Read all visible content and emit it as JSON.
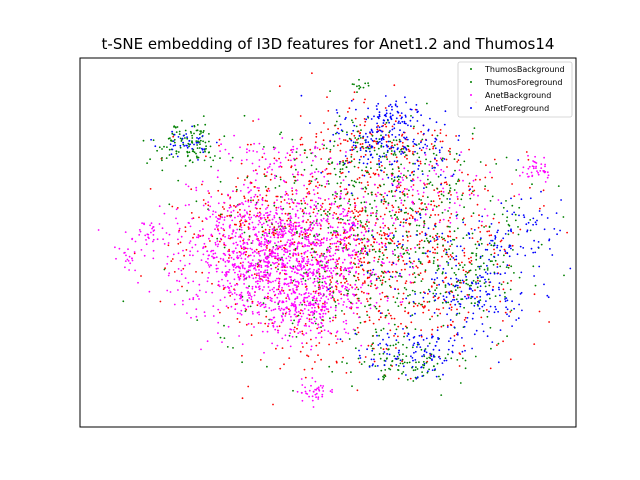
{
  "chart_data": {
    "type": "scatter",
    "title": "t-SNE embedding of I3D features for Anet1.2 and Thumos14",
    "xlabel": "",
    "ylabel": "",
    "xlim": [
      -100,
      100
    ],
    "ylim": [
      -100,
      100
    ],
    "grid": false,
    "axis_ticks": false,
    "legend_position": "top-right",
    "series": [
      {
        "name": "ThumosBackground",
        "color": "#ff0000",
        "legend_color": "#008000",
        "clusters": [
          {
            "cx": 15,
            "cy": -5,
            "sx": 32,
            "sy": 32,
            "n": 900
          },
          {
            "cx": -30,
            "cy": 10,
            "sx": 15,
            "sy": 15,
            "n": 150
          },
          {
            "cx": 20,
            "cy": 55,
            "sx": 14,
            "sy": 8,
            "n": 120
          },
          {
            "cx": 40,
            "cy": 20,
            "sx": 18,
            "sy": 15,
            "n": 100
          }
        ]
      },
      {
        "name": "ThumosForeground",
        "color": "#008000",
        "legend_color": "#008000",
        "clusters": [
          {
            "cx": 20,
            "cy": 0,
            "sx": 32,
            "sy": 32,
            "n": 700
          },
          {
            "cx": -57,
            "cy": 53,
            "sx": 7,
            "sy": 6,
            "n": 120
          },
          {
            "cx": 32,
            "cy": -65,
            "sx": 10,
            "sy": 5,
            "n": 90
          },
          {
            "cx": 60,
            "cy": -20,
            "sx": 10,
            "sy": 10,
            "n": 80
          },
          {
            "cx": 23,
            "cy": 48,
            "sx": 14,
            "sy": 8,
            "n": 100
          },
          {
            "cx": 107,
            "cy": 20,
            "sx": 2,
            "sy": 2,
            "n": 18
          },
          {
            "cx": 12,
            "cy": 85,
            "sx": 2,
            "sy": 2,
            "n": 12
          }
        ]
      },
      {
        "name": "AnetBackground",
        "color": "#ff00ff",
        "legend_color": "#ff00ff",
        "clusters": [
          {
            "cx": -18,
            "cy": -5,
            "sx": 20,
            "sy": 18,
            "n": 1500
          },
          {
            "cx": -10,
            "cy": -35,
            "sx": 10,
            "sy": 10,
            "n": 200
          },
          {
            "cx": -6,
            "cy": -81,
            "sx": 3,
            "sy": 3,
            "n": 40
          },
          {
            "cx": -95,
            "cy": 5,
            "sx": 1.3,
            "sy": 1.3,
            "n": 15
          },
          {
            "cx": -72,
            "cy": 5,
            "sx": 4,
            "sy": 4,
            "n": 30
          },
          {
            "cx": -80,
            "cy": -8,
            "sx": 4,
            "sy": 3,
            "n": 20
          },
          {
            "cx": 84,
            "cy": 40,
            "sx": 3,
            "sy": 3,
            "n": 40
          },
          {
            "cx": 40,
            "cy": 25,
            "sx": 12,
            "sy": 10,
            "n": 80
          },
          {
            "cx": -20,
            "cy": 48,
            "sx": 12,
            "sy": 6,
            "n": 60
          }
        ]
      },
      {
        "name": "AnetForeground",
        "color": "#0000ff",
        "legend_color": "#0000ff",
        "clusters": [
          {
            "cx": 25,
            "cy": 55,
            "sx": 12,
            "sy": 10,
            "n": 200
          },
          {
            "cx": -57,
            "cy": 53,
            "sx": 5,
            "sy": 4,
            "n": 40
          },
          {
            "cx": 35,
            "cy": -60,
            "sx": 12,
            "sy": 7,
            "n": 120
          },
          {
            "cx": 60,
            "cy": -30,
            "sx": 10,
            "sy": 10,
            "n": 120
          },
          {
            "cx": 75,
            "cy": 0,
            "sx": 10,
            "sy": 15,
            "n": 100
          },
          {
            "cx": 40,
            "cy": 0,
            "sx": 15,
            "sy": 15,
            "n": 80
          },
          {
            "cx": 28,
            "cy": 70,
            "sx": 5,
            "sy": 4,
            "n": 50
          }
        ]
      }
    ]
  }
}
